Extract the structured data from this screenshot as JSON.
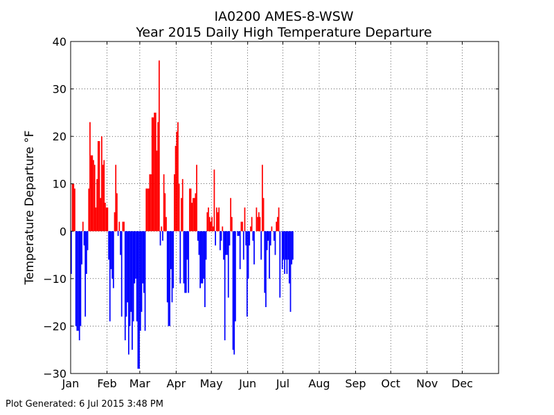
{
  "chart_data": {
    "type": "bar",
    "title": "IA0200 AMES-8-WSW",
    "subtitle": "Year 2015 Daily High Temperature Departure",
    "xlabel": "",
    "ylabel": "Temperature Departure °F",
    "ylim": [
      -30,
      40
    ],
    "yticks": [
      -30,
      -20,
      -10,
      0,
      10,
      20,
      30,
      40
    ],
    "ytick_labels": [
      "−30",
      "−20",
      "−10",
      "0",
      "10",
      "20",
      "30",
      "40"
    ],
    "xlim": [
      1,
      366
    ],
    "xticks": [
      {
        "day": 1,
        "label": "Jan"
      },
      {
        "day": 32,
        "label": "Feb"
      },
      {
        "day": 60,
        "label": "Mar"
      },
      {
        "day": 91,
        "label": "Apr"
      },
      {
        "day": 121,
        "label": "May"
      },
      {
        "day": 152,
        "label": "Jun"
      },
      {
        "day": 182,
        "label": "Jul"
      },
      {
        "day": 213,
        "label": "Aug"
      },
      {
        "day": 244,
        "label": "Sep"
      },
      {
        "day": 274,
        "label": "Oct"
      },
      {
        "day": 305,
        "label": "Nov"
      },
      {
        "day": 335,
        "label": "Dec"
      }
    ],
    "grid": true,
    "positive_color": "#ff0000",
    "negative_color": "#0000ff",
    "series": [
      {
        "start_day": 1,
        "values": [
          -9,
          10,
          10,
          9,
          -20,
          -21,
          -21,
          -23,
          -20,
          -7,
          2,
          -3,
          -18,
          -9,
          -4,
          9,
          23,
          16,
          16,
          15,
          14,
          5,
          11,
          19,
          19,
          7,
          20,
          14,
          15,
          6,
          5,
          5,
          -6,
          -19,
          -8,
          -10,
          -12,
          4,
          14,
          8,
          -1,
          2,
          -5,
          -18,
          2,
          2,
          -23,
          -18,
          -15,
          -26,
          -20,
          -17,
          -25,
          -19,
          -11,
          -10,
          -19,
          -29,
          -29,
          -21,
          -17,
          -11,
          -13,
          -21,
          9,
          9,
          9,
          12,
          12,
          24,
          24,
          25,
          25,
          17,
          23,
          36,
          -3,
          1,
          -2,
          12,
          8,
          3,
          -15,
          -20,
          -20,
          -8,
          -15,
          -12,
          12,
          18,
          21,
          23,
          10,
          -11,
          7,
          11,
          -11,
          -13,
          -13,
          -6,
          -13,
          9,
          9,
          6,
          7,
          7,
          8,
          14,
          -2,
          -5,
          -12,
          -11,
          -11,
          -10,
          -16,
          -6,
          4,
          5,
          3,
          2,
          3,
          1,
          13,
          -3,
          5,
          4,
          5,
          -4,
          -2,
          1,
          -6,
          -23,
          -5,
          -5,
          -14,
          -3,
          7,
          3,
          -25,
          -26,
          -19,
          0,
          -1,
          -1,
          -8,
          2,
          2,
          -6,
          5,
          -3,
          -18,
          -10,
          -3,
          1,
          3,
          -2,
          -7,
          0,
          5,
          3,
          4,
          3,
          -6,
          14,
          7,
          -13,
          -16,
          -4,
          -2,
          -10,
          -3,
          1,
          0,
          -2,
          -5,
          2,
          3,
          5,
          -14,
          0,
          -8,
          -6,
          -9,
          -6,
          -9,
          -6,
          -11,
          -17,
          -7,
          -6
        ]
      }
    ]
  },
  "footer_text": "Plot Generated: 6 Jul 2015 3:48 PM"
}
